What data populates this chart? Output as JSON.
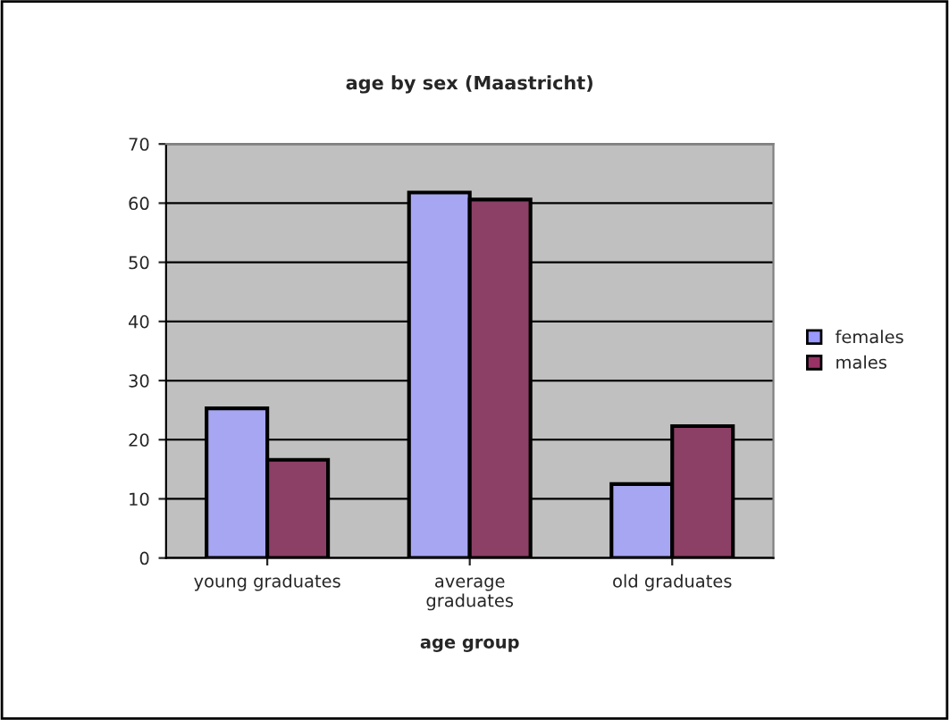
{
  "chart_data": {
    "type": "bar",
    "title": "age by sex (Maastricht)",
    "xlabel": "age group",
    "categories": [
      "young graduates",
      "average\ngraduates",
      "old graduates"
    ],
    "series": [
      {
        "name": "females",
        "color": "#9999ff",
        "values": [
          25.3,
          61.8,
          12.5
        ]
      },
      {
        "name": "males",
        "color": "#993366",
        "values": [
          16.6,
          60.6,
          22.3
        ]
      }
    ],
    "ylim": [
      0,
      70
    ],
    "yticks": [
      0,
      10,
      20,
      30,
      40,
      50,
      60,
      70
    ],
    "grid": "y",
    "legend": "right"
  }
}
